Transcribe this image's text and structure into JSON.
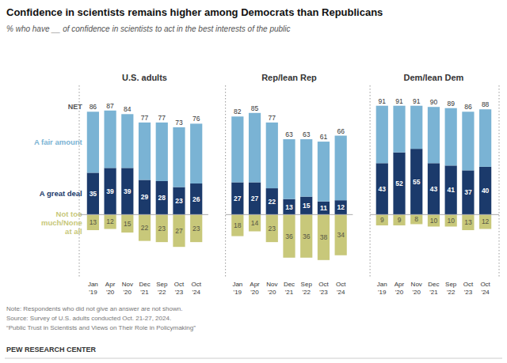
{
  "title": "Confidence in scientists remains higher among Democrats than Republicans",
  "subtitle": "% who have __ of confidence in scientists to act in the best interests of the public",
  "notes": [
    "Note: Respondents who did not give an answer are not shown.",
    "Source: Survey of U.S. adults conducted Oct. 21-27, 2024.",
    "“Public Trust in Scientists and Views on Their Role in Policymaking”"
  ],
  "footer": "PEW RESEARCH CENTER",
  "chart_data": [
    {
      "type": "diverging_bar",
      "stacked": true,
      "title": "U.S. adults",
      "legend": "left",
      "categories": [
        "Jan\n'19",
        "Apr\n'20",
        "Nov\n'20",
        "Dec\n'21",
        "Sep\n'22",
        "Oct\n'23",
        "Oct\n'24"
      ],
      "series": [
        {
          "name": "A great deal",
          "color": "#1b3a6b",
          "data_labels": true,
          "values": [
            35,
            39,
            39,
            29,
            28,
            23,
            26
          ]
        },
        {
          "name": "A fair amount",
          "color": "#7ab3d4",
          "values": [
            51,
            48,
            45,
            48,
            49,
            50,
            50
          ]
        },
        {
          "name": "Not too\nmuch/None\nat all",
          "color": "#c8c87a",
          "data_labels": true,
          "values": [
            13,
            12,
            15,
            22,
            23,
            27,
            23
          ]
        }
      ],
      "net": {
        "name": "NET",
        "values": [
          86,
          87,
          84,
          77,
          77,
          73,
          76
        ]
      },
      "ylim": [
        -52,
        108
      ],
      "tick_labels": "x",
      "grid": false
    },
    {
      "type": "diverging_bar",
      "stacked": true,
      "title": "Rep/lean Rep",
      "categories": [
        "Jan\n'19",
        "Apr\n'20",
        "Nov\n'20",
        "Dec\n'21",
        "Sep\n'22",
        "Oct\n'23",
        "Oct\n'24"
      ],
      "series": [
        {
          "color": "#1b3a6b",
          "data_labels": true,
          "values": [
            27,
            27,
            22,
            13,
            15,
            11,
            12
          ]
        },
        {
          "color": "#7ab3d4",
          "values": [
            55,
            58,
            55,
            50,
            48,
            50,
            54
          ]
        },
        {
          "color": "#c8c87a",
          "data_labels": true,
          "values": [
            18,
            14,
            23,
            36,
            36,
            38,
            34
          ]
        }
      ],
      "net": {
        "values": [
          82,
          85,
          77,
          63,
          63,
          61,
          66
        ]
      },
      "ylim": [
        -52,
        108
      ],
      "tick_labels": "x",
      "grid": false
    },
    {
      "type": "diverging_bar",
      "stacked": true,
      "title": "Dem/lean Dem",
      "categories": [
        "Jan\n'19",
        "Apr\n'20",
        "Nov\n'20",
        "Dec\n'21",
        "Sep\n'22",
        "Oct\n'23",
        "Oct\n'24"
      ],
      "series": [
        {
          "color": "#1b3a6b",
          "data_labels": true,
          "values": [
            43,
            52,
            55,
            43,
            41,
            37,
            40
          ]
        },
        {
          "color": "#7ab3d4",
          "values": [
            48,
            39,
            36,
            47,
            48,
            49,
            48
          ]
        },
        {
          "color": "#c8c87a",
          "data_labels": true,
          "values": [
            9,
            9,
            8,
            10,
            10,
            13,
            12
          ]
        }
      ],
      "net": {
        "values": [
          91,
          91,
          91,
          90,
          89,
          86,
          88
        ]
      },
      "ylim": [
        -52,
        108
      ],
      "tick_labels": "x",
      "grid": false
    }
  ]
}
